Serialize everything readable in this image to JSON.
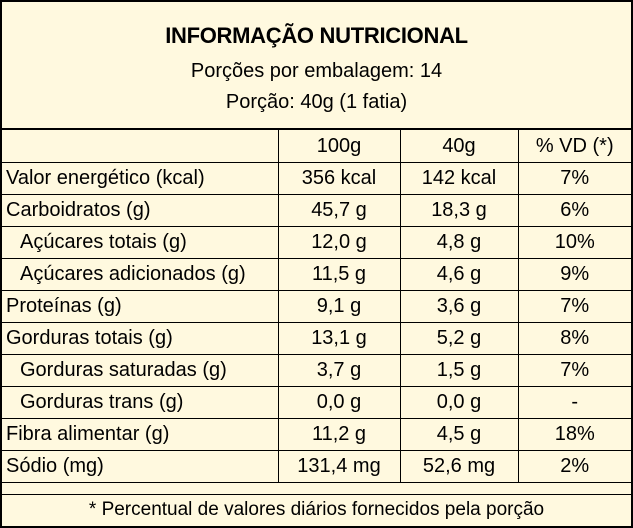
{
  "header": {
    "title": "INFORMAÇÃO NUTRICIONAL",
    "servings_per_package": "Porções por embalagem: 14",
    "serving_size": "Porção: 40g (1 fatia)"
  },
  "columns": [
    "",
    "100g",
    "40g",
    "% VD (*)"
  ],
  "rows": [
    {
      "name": "Valor energético (kcal)",
      "per100": "356 kcal",
      "per40": "142 kcal",
      "vd": "7%",
      "indent": false
    },
    {
      "name": "Carboidratos (g)",
      "per100": "45,7 g",
      "per40": "18,3 g",
      "vd": "6%",
      "indent": false
    },
    {
      "name": "Açúcares totais (g)",
      "per100": "12,0 g",
      "per40": "4,8 g",
      "vd": "10%",
      "indent": true
    },
    {
      "name": "Açúcares adicionados (g)",
      "per100": "11,5 g",
      "per40": "4,6 g",
      "vd": "9%",
      "indent": true
    },
    {
      "name": "Proteínas (g)",
      "per100": "9,1 g",
      "per40": "3,6 g",
      "vd": "7%",
      "indent": false
    },
    {
      "name": "Gorduras totais (g)",
      "per100": "13,1 g",
      "per40": "5,2 g",
      "vd": "8%",
      "indent": false
    },
    {
      "name": "Gorduras saturadas (g)",
      "per100": "3,7 g",
      "per40": "1,5 g",
      "vd": "7%",
      "indent": true
    },
    {
      "name": "Gorduras trans (g)",
      "per100": "0,0 g",
      "per40": "0,0 g",
      "vd": "-",
      "indent": true
    },
    {
      "name": "Fibra alimentar (g)",
      "per100": "11,2 g",
      "per40": "4,5 g",
      "vd": "18%",
      "indent": false
    },
    {
      "name": "Sódio (mg)",
      "per100": "131,4 mg",
      "per40": "52,6 mg",
      "vd": "2%",
      "indent": false
    }
  ],
  "footer": "* Percentual de valores diários fornecidos pela porção",
  "colors": {
    "background": "#FFF9DF",
    "border": "#000000"
  }
}
